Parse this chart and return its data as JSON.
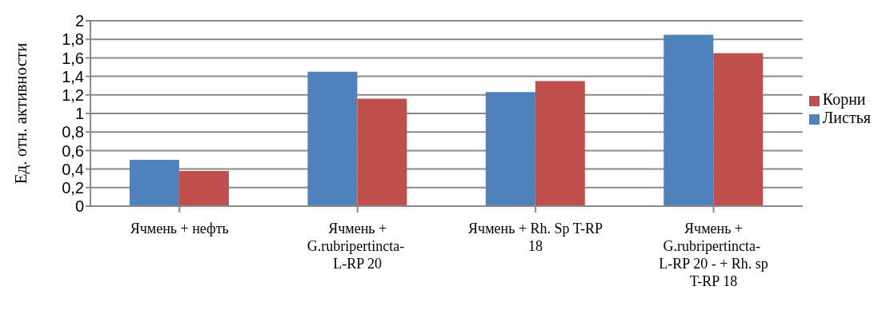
{
  "chart_data": {
    "type": "bar",
    "ylabel": "Ед. отн. активности",
    "categories": [
      "Ячмень + нефть",
      "Ячмень + G.rubripertincta-  L-RP 20",
      "Ячмень + Rh. Sp T-RP 18",
      "Ячмень + G.rubripertincta-  L-RP 20 -  + Rh. sp T-RP 18"
    ],
    "series": [
      {
        "name": "Листья",
        "color": "#4f81bd",
        "values": [
          0.5,
          1.45,
          1.23,
          1.85
        ]
      },
      {
        "name": "Корни",
        "color": "#c0504d",
        "values": [
          0.38,
          1.16,
          1.35,
          1.65
        ]
      }
    ],
    "ylim": [
      0,
      2
    ],
    "yticks": [
      {
        "value": 0,
        "label": "0"
      },
      {
        "value": 0.2,
        "label": "0,2"
      },
      {
        "value": 0.4,
        "label": "0,4"
      },
      {
        "value": 0.6,
        "label": "0,6"
      },
      {
        "value": 0.8,
        "label": "0,8"
      },
      {
        "value": 1,
        "label": "1"
      },
      {
        "value": 1.2,
        "label": "1,2"
      },
      {
        "value": 1.4,
        "label": "1,4"
      },
      {
        "value": 1.6,
        "label": "1,6"
      },
      {
        "value": 1.8,
        "label": "1,8"
      },
      {
        "value": 2,
        "label": "2"
      }
    ],
    "grid": "y",
    "legend": "right"
  }
}
